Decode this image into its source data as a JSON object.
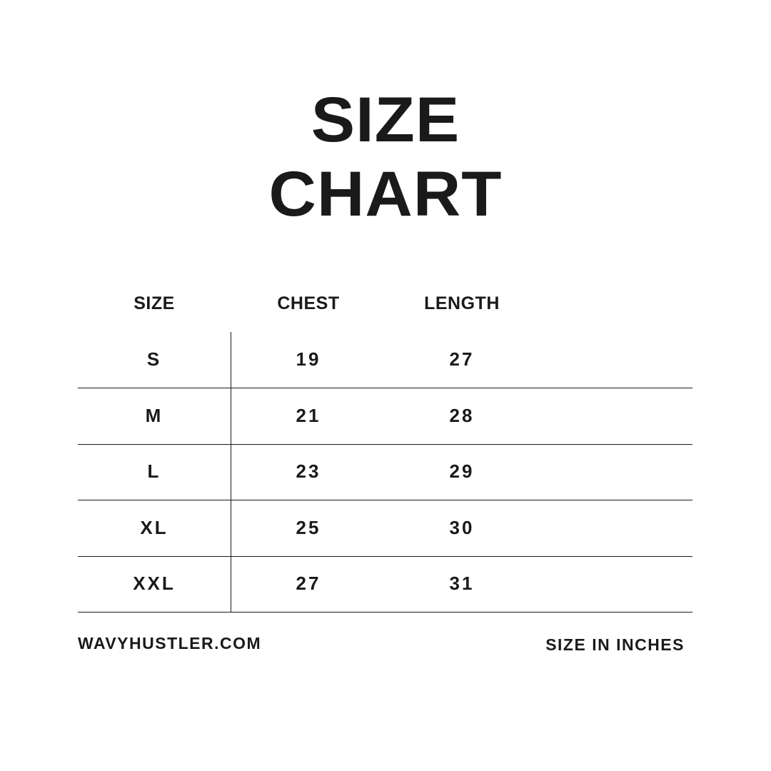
{
  "title": {
    "line1": "SIZE",
    "line2": "CHART"
  },
  "table": {
    "headers": [
      "SIZE",
      "CHEST",
      "LENGTH"
    ],
    "rows": [
      [
        "S",
        "19",
        "27"
      ],
      [
        "M",
        "21",
        "28"
      ],
      [
        "L",
        "23",
        "29"
      ],
      [
        "XL",
        "25",
        "30"
      ],
      [
        "XXL",
        "27",
        "31"
      ]
    ]
  },
  "footer": {
    "website": "WAVYHUSTLER.COM",
    "unit_note": "SIZE IN INCHES"
  },
  "colors": {
    "text": "#1a1a1a",
    "background": "#ffffff"
  }
}
